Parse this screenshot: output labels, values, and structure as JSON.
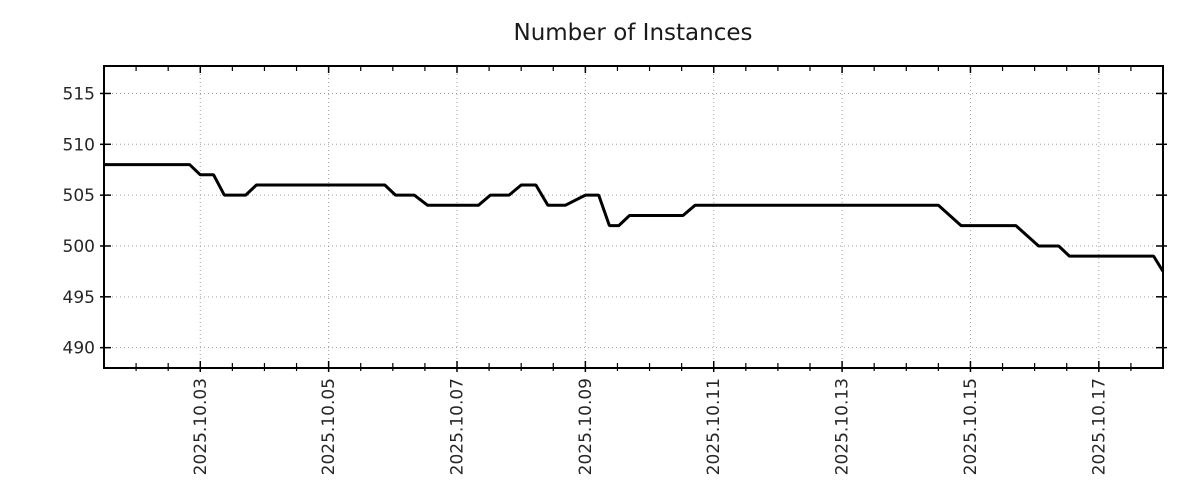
{
  "title": "Number of Instances",
  "colors": {
    "background": "#ffffff",
    "grid": "#a0a0a0",
    "axis": "#000000",
    "line": "#000000",
    "text": "#262626"
  },
  "chart_data": {
    "type": "line",
    "title": "Number of Instances",
    "xlabel": "",
    "ylabel": "",
    "x_start": "2025-10-01T12:00:00",
    "x_end": "2025-10-18T00:00:00",
    "ylim": [
      488,
      517.7
    ],
    "y_ticks": [
      490,
      495,
      500,
      505,
      510,
      515
    ],
    "x_ticks": [
      {
        "date": "2025-10-03T00:00:00",
        "label": "2025.10.03"
      },
      {
        "date": "2025-10-05T00:00:00",
        "label": "2025.10.05"
      },
      {
        "date": "2025-10-07T00:00:00",
        "label": "2025.10.07"
      },
      {
        "date": "2025-10-09T00:00:00",
        "label": "2025.10.09"
      },
      {
        "date": "2025-10-11T00:00:00",
        "label": "2025.10.11"
      },
      {
        "date": "2025-10-13T00:00:00",
        "label": "2025.10.13"
      },
      {
        "date": "2025-10-15T00:00:00",
        "label": "2025.10.15"
      },
      {
        "date": "2025-10-17T00:00:00",
        "label": "2025.10.17"
      }
    ],
    "x_minor_tick_hours": 12,
    "grid": "dotted",
    "legend_position": "none",
    "series": [
      {
        "name": "instances",
        "color": "#000000",
        "points": [
          [
            "2025-10-01T12:00:00",
            508
          ],
          [
            "2025-10-02T20:00:00",
            508
          ],
          [
            "2025-10-03T00:00:00",
            507
          ],
          [
            "2025-10-03T05:00:00",
            507
          ],
          [
            "2025-10-03T09:00:00",
            505
          ],
          [
            "2025-10-03T17:00:00",
            505
          ],
          [
            "2025-10-03T21:00:00",
            506
          ],
          [
            "2025-10-05T21:00:00",
            506
          ],
          [
            "2025-10-06T01:00:00",
            505
          ],
          [
            "2025-10-06T08:00:00",
            505
          ],
          [
            "2025-10-06T13:00:00",
            504
          ],
          [
            "2025-10-07T08:00:00",
            504
          ],
          [
            "2025-10-07T12:30:00",
            505
          ],
          [
            "2025-10-07T19:30:00",
            505
          ],
          [
            "2025-10-08T00:00:00",
            506
          ],
          [
            "2025-10-08T05:30:00",
            506
          ],
          [
            "2025-10-08T10:00:00",
            504
          ],
          [
            "2025-10-08T16:30:00",
            504
          ],
          [
            "2025-10-09T00:00:00",
            505
          ],
          [
            "2025-10-09T05:00:00",
            505
          ],
          [
            "2025-10-09T09:00:00",
            502
          ],
          [
            "2025-10-09T12:30:00",
            502
          ],
          [
            "2025-10-09T16:30:00",
            503
          ],
          [
            "2025-10-10T12:30:00",
            503
          ],
          [
            "2025-10-10T17:00:00",
            504
          ],
          [
            "2025-10-14T12:00:00",
            504
          ],
          [
            "2025-10-14T20:30:00",
            502
          ],
          [
            "2025-10-15T17:00:00",
            502
          ],
          [
            "2025-10-16T01:30:00",
            500
          ],
          [
            "2025-10-16T09:00:00",
            500
          ],
          [
            "2025-10-16T13:00:00",
            499
          ],
          [
            "2025-10-17T20:30:00",
            499
          ],
          [
            "2025-10-18T00:00:00",
            497.5
          ]
        ]
      }
    ]
  }
}
